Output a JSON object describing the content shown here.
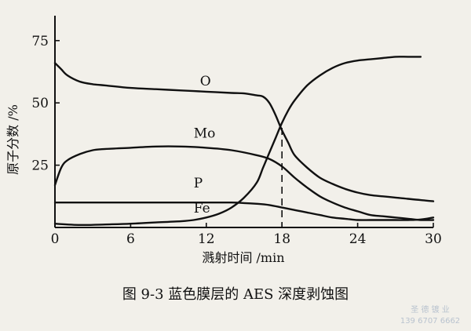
{
  "chart_data": {
    "type": "line",
    "title": "",
    "xlabel": "溅射时间 /min",
    "ylabel": "原子分数 /%",
    "xlim": [
      0,
      30
    ],
    "ylim": [
      0,
      85
    ],
    "x_ticks": [
      0,
      6,
      12,
      18,
      24,
      30
    ],
    "y_ticks": [
      25,
      50,
      75
    ],
    "grid": false,
    "legend": "inline labels on curves",
    "series": [
      {
        "name": "O",
        "x": [
          0,
          0.5,
          1,
          2,
          3,
          4,
          6,
          8,
          10,
          12,
          14,
          15,
          16,
          16.5,
          17,
          17.5,
          18,
          18.5,
          19,
          20,
          21,
          22,
          23,
          24,
          25,
          26,
          27,
          28,
          29,
          30
        ],
        "y": [
          66,
          63.5,
          61,
          58.5,
          57.5,
          57,
          56,
          55.5,
          55,
          54.5,
          54,
          53.8,
          53,
          52.5,
          50,
          45,
          39,
          34,
          29,
          24,
          20,
          17.5,
          15.5,
          14,
          13,
          12.5,
          12,
          11.5,
          11,
          10.5
        ]
      },
      {
        "name": "Mo",
        "x": [
          0,
          0.5,
          1,
          2,
          3,
          4,
          6,
          8,
          10,
          12,
          14,
          16,
          17,
          18,
          19,
          20,
          21,
          22,
          23,
          24,
          25,
          26,
          27,
          28,
          29,
          30
        ],
        "y": [
          17,
          24,
          27,
          29.5,
          31,
          31.5,
          32,
          32.5,
          32.5,
          32,
          31,
          29,
          27.5,
          24.5,
          20,
          16,
          12.5,
          10,
          8,
          6.5,
          5,
          4.5,
          4,
          3.5,
          3,
          3
        ]
      },
      {
        "name": "P",
        "x": [
          0,
          2,
          4,
          6,
          8,
          10,
          12,
          14,
          15,
          16,
          17,
          18,
          19,
          20,
          21,
          22,
          23,
          24,
          25,
          26,
          27,
          28,
          29,
          30
        ],
        "y": [
          10,
          10,
          10,
          10,
          10,
          10,
          10,
          10,
          9.8,
          9.5,
          9,
          8,
          7,
          6,
          5,
          4,
          3.5,
          3,
          3,
          3,
          3,
          3,
          3.2,
          4
        ]
      },
      {
        "name": "Fe",
        "x": [
          0,
          2,
          4,
          6,
          8,
          10,
          11,
          12,
          13,
          14,
          15,
          16,
          16.5,
          17,
          17.5,
          18,
          18.5,
          19,
          20,
          21,
          22,
          23,
          24,
          25,
          26,
          27,
          28,
          29
        ],
        "y": [
          1.5,
          1,
          1.2,
          1.5,
          2,
          2.5,
          3,
          4,
          5.5,
          8,
          12,
          18,
          24,
          30,
          36,
          42,
          47,
          51,
          57,
          61,
          64,
          66,
          67,
          67.5,
          68,
          68.5,
          68.5,
          68.5
        ]
      }
    ],
    "annotations": [
      {
        "type": "vertical-dashed-line",
        "x": 18,
        "y_from": 0,
        "y_to": 40
      }
    ]
  },
  "caption": "图 9-3    蓝色膜层的 AES 深度剥蚀图",
  "watermark": {
    "line1": "圣 德 镀 业",
    "line2": "139 6707 6662"
  }
}
